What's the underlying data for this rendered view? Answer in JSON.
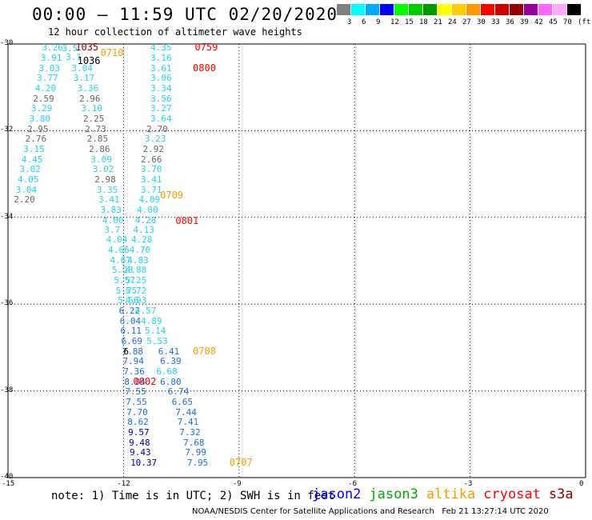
{
  "title": "00:00 – 11:59 UTC 02/20/2020",
  "subtitle": "12 hour collection of altimeter wave heights",
  "colorbar": {
    "colors": [
      "#808080",
      "#00ffff",
      "#00aaff",
      "#0000ff",
      "#00ff00",
      "#00cc00",
      "#009900",
      "#ffff00",
      "#ffcc00",
      "#ff9900",
      "#ff0000",
      "#cc0000",
      "#990000",
      "#990099",
      "#ff66ff",
      "#ffaaff",
      "#000000"
    ],
    "labels": [
      "3",
      "6",
      "9",
      "12",
      "15",
      "18",
      "21",
      "24",
      "27",
      "30",
      "33",
      "36",
      "39",
      "42",
      "45",
      "70",
      "(ft)"
    ]
  },
  "axes": {
    "lat_labels": [
      "-30",
      "-32",
      "-34",
      "-36",
      "-38",
      "-40"
    ],
    "lon_labels": [
      "-15",
      "-12",
      "-9",
      "-6",
      "-3",
      "0"
    ]
  },
  "chart_data": {
    "type": "scatter",
    "x_label": "",
    "y_label": "",
    "xlim": [
      -15,
      0
    ],
    "ylim": [
      -40,
      -30
    ],
    "colors": {
      "gray": "#666666",
      "cyan": "#22d3ee",
      "blue": "#1e6fd9",
      "navy": "#0000b0",
      "black": "#000000"
    },
    "tracks": [
      {
        "points": [
          [
            -14.12,
            -30.08,
            "3.26",
            "cyan"
          ],
          [
            -14.15,
            -30.31,
            "3.91",
            "cyan"
          ],
          [
            -14.2,
            -30.55,
            "3.03",
            "cyan"
          ],
          [
            -14.25,
            -30.78,
            "3.77",
            "cyan"
          ],
          [
            -14.3,
            -31.01,
            "4.20",
            "cyan"
          ],
          [
            -14.35,
            -31.25,
            "2.59",
            "gray"
          ],
          [
            -14.4,
            -31.48,
            "3.29",
            "cyan"
          ],
          [
            -14.45,
            -31.71,
            "3.80",
            "cyan"
          ],
          [
            -14.5,
            -31.95,
            "2.95",
            "gray"
          ],
          [
            -14.55,
            -32.18,
            "2.76",
            "gray"
          ],
          [
            -14.6,
            -32.41,
            "3.15",
            "cyan"
          ],
          [
            -14.65,
            -32.65,
            "4.45",
            "cyan"
          ],
          [
            -14.7,
            -32.88,
            "3.02",
            "cyan"
          ],
          [
            -14.75,
            -33.11,
            "4.05",
            "cyan"
          ],
          [
            -14.8,
            -33.35,
            "3.04",
            "cyan"
          ],
          [
            -14.85,
            -33.58,
            "2.20",
            "gray"
          ]
        ]
      },
      {
        "points": [
          [
            -13.6,
            -30.1,
            "3.5",
            "cyan"
          ],
          [
            -13.5,
            -30.3,
            "3.1",
            "cyan"
          ],
          [
            -13.35,
            -30.55,
            "3.04",
            "cyan"
          ],
          [
            -13.3,
            -30.78,
            "3.17",
            "cyan"
          ],
          [
            -13.2,
            -31.01,
            "3.36",
            "cyan"
          ],
          [
            -13.15,
            -31.25,
            "2.96",
            "gray"
          ],
          [
            -13.1,
            -31.48,
            "3.10",
            "cyan"
          ],
          [
            -13.05,
            -31.71,
            "2.25",
            "gray"
          ],
          [
            -13.0,
            -31.95,
            "2.73",
            "gray"
          ],
          [
            -12.95,
            -32.18,
            "2.85",
            "gray"
          ],
          [
            -12.9,
            -32.41,
            "2.86",
            "gray"
          ],
          [
            -12.85,
            -32.65,
            "3.09",
            "cyan"
          ],
          [
            -12.8,
            -32.88,
            "3.02",
            "cyan"
          ],
          [
            -12.75,
            -33.11,
            "2.98",
            "gray"
          ],
          [
            -12.7,
            -33.35,
            "3.35",
            "cyan"
          ],
          [
            -12.65,
            -33.58,
            "3.41",
            "cyan"
          ],
          [
            -12.6,
            -33.81,
            "3.83",
            "cyan"
          ],
          [
            -12.55,
            -34.05,
            "4.00",
            "cyan"
          ],
          [
            -12.5,
            -34.28,
            "3.7",
            "cyan"
          ],
          [
            -12.45,
            -34.51,
            "4.04",
            "cyan"
          ],
          [
            -12.4,
            -34.75,
            "4.66",
            "cyan"
          ],
          [
            -12.35,
            -34.98,
            "4.67",
            "cyan"
          ],
          [
            -12.3,
            -35.21,
            "5.23",
            "cyan"
          ],
          [
            -12.25,
            -35.45,
            "5.57",
            "cyan"
          ],
          [
            -12.2,
            -35.68,
            "5.75",
            "cyan"
          ],
          [
            -12.15,
            -35.91,
            "5.56",
            "cyan"
          ],
          [
            -12.12,
            -36.15,
            "6.22",
            "blue"
          ],
          [
            -12.1,
            -36.38,
            "6.04",
            "blue"
          ],
          [
            -12.08,
            -36.61,
            "6.11",
            "blue"
          ],
          [
            -12.06,
            -36.85,
            "6.69",
            "blue"
          ],
          [
            -12.04,
            -37.08,
            "7.88",
            "blue"
          ],
          [
            -12.02,
            -37.31,
            "7.94",
            "blue"
          ],
          [
            -12.0,
            -37.55,
            "7.36",
            "blue"
          ],
          [
            -11.98,
            -37.78,
            "8.04",
            "blue"
          ],
          [
            -11.96,
            -38.01,
            "7.55",
            "blue"
          ],
          [
            -11.94,
            -38.25,
            "7.55",
            "blue"
          ],
          [
            -11.92,
            -38.48,
            "7.70",
            "blue"
          ],
          [
            -11.9,
            -38.71,
            "8.62",
            "blue"
          ],
          [
            -11.88,
            -38.95,
            "9.57",
            "navy"
          ],
          [
            -11.86,
            -39.18,
            "9.48",
            "navy"
          ],
          [
            -11.84,
            -39.41,
            "9.43",
            "navy"
          ],
          [
            -11.82,
            -39.65,
            "10.37",
            "navy"
          ]
        ]
      },
      {
        "points": [
          [
            -11.3,
            -30.08,
            "4.35",
            "cyan"
          ],
          [
            -11.3,
            -30.31,
            "3.16",
            "cyan"
          ],
          [
            -11.3,
            -30.55,
            "3.61",
            "cyan"
          ],
          [
            -11.3,
            -30.78,
            "3.06",
            "cyan"
          ],
          [
            -11.3,
            -31.01,
            "3.34",
            "cyan"
          ],
          [
            -11.3,
            -31.25,
            "3.56",
            "cyan"
          ],
          [
            -11.3,
            -31.48,
            "3.27",
            "cyan"
          ],
          [
            -11.3,
            -31.71,
            "3.64",
            "cyan"
          ],
          [
            -11.4,
            -31.95,
            "2.70",
            "gray"
          ],
          [
            -11.45,
            -32.18,
            "3.23",
            "cyan"
          ],
          [
            -11.5,
            -32.41,
            "2.92",
            "gray"
          ],
          [
            -11.55,
            -32.65,
            "2.66",
            "gray"
          ],
          [
            -11.55,
            -32.88,
            "3.70",
            "cyan"
          ],
          [
            -11.55,
            -33.11,
            "3.41",
            "cyan"
          ],
          [
            -11.55,
            -33.35,
            "3.71",
            "cyan"
          ],
          [
            -11.6,
            -33.58,
            "4.09",
            "cyan"
          ],
          [
            -11.65,
            -33.81,
            "4.00",
            "cyan"
          ],
          [
            -11.7,
            -34.05,
            "4.28",
            "cyan"
          ],
          [
            -11.75,
            -34.28,
            "4.13",
            "cyan"
          ],
          [
            -11.8,
            -34.51,
            "4.28",
            "cyan"
          ],
          [
            -11.85,
            -34.75,
            "4.70",
            "cyan"
          ],
          [
            -11.9,
            -34.98,
            "4.83",
            "cyan"
          ],
          [
            -11.95,
            -35.21,
            "4.88",
            "cyan"
          ],
          [
            -11.95,
            -35.45,
            "5.25",
            "cyan"
          ],
          [
            -11.95,
            -35.68,
            "5.72",
            "cyan"
          ],
          [
            -11.95,
            -35.91,
            "4.93",
            "cyan"
          ],
          [
            -11.7,
            -36.15,
            "4.57",
            "cyan"
          ],
          [
            -11.55,
            -36.38,
            "4.89",
            "cyan"
          ],
          [
            -11.45,
            -36.61,
            "5.14",
            "cyan"
          ],
          [
            -11.4,
            -36.85,
            "5.53",
            "cyan"
          ],
          [
            -11.1,
            -37.08,
            "6.41",
            "blue"
          ],
          [
            -11.05,
            -37.31,
            "6.39",
            "blue"
          ],
          [
            -11.15,
            -37.55,
            "6.68",
            "cyan"
          ],
          [
            -11.05,
            -37.78,
            "6.80",
            "blue"
          ],
          [
            -10.85,
            -38.01,
            "6.74",
            "blue"
          ],
          [
            -10.75,
            -38.25,
            "6.65",
            "blue"
          ],
          [
            -10.65,
            -38.48,
            "7.44",
            "blue"
          ],
          [
            -10.6,
            -38.71,
            "7.41",
            "blue"
          ],
          [
            -10.55,
            -38.95,
            "7.32",
            "blue"
          ],
          [
            -10.45,
            -39.18,
            "7.68",
            "blue"
          ],
          [
            -10.4,
            -39.41,
            "7.99",
            "blue"
          ],
          [
            -10.35,
            -39.65,
            "7.95",
            "blue"
          ]
        ]
      }
    ],
    "extra_points": [
      [
        -12.0,
        -37.08,
        "6",
        "black"
      ]
    ],
    "time_labels": [
      {
        "text": "1035",
        "lon": -13.25,
        "lat": -30.08,
        "color": "#8b0000"
      },
      {
        "text": "1036",
        "lon": -13.2,
        "lat": -30.38,
        "color": "#000000"
      },
      {
        "text": "0710",
        "lon": -12.6,
        "lat": -30.2,
        "color": "#ff9900"
      },
      {
        "text": "0759",
        "lon": -10.15,
        "lat": -30.08,
        "color": "#ff0000"
      },
      {
        "text": "0800",
        "lon": -10.2,
        "lat": -30.55,
        "color": "#ff0000"
      },
      {
        "text": "0709",
        "lon": -11.05,
        "lat": -33.48,
        "color": "#ff9900"
      },
      {
        "text": "0801",
        "lon": -10.65,
        "lat": -34.08,
        "color": "#ff0000"
      },
      {
        "text": "0708",
        "lon": -10.2,
        "lat": -37.08,
        "color": "#ff9900"
      },
      {
        "text": "0802",
        "lon": -11.75,
        "lat": -37.78,
        "color": "#ff0000"
      },
      {
        "text": "0707",
        "lon": -9.25,
        "lat": -39.65,
        "color": "#ff9900"
      }
    ]
  },
  "note": "note: 1) Time is in UTC; 2) SWH is in feet",
  "legend": [
    {
      "name": "jason2",
      "color": "#0000ff"
    },
    {
      "name": "jason3",
      "color": "#00aa00"
    },
    {
      "name": "altika",
      "color": "#ff9900"
    },
    {
      "name": "cryosat",
      "color": "#ff0000"
    },
    {
      "name": "s3a",
      "color": "#8b0000"
    }
  ],
  "footer": "NOAA/NESDIS Center for Satellite Applications and Research   Feb 21 13:27:14 UTC 2020"
}
